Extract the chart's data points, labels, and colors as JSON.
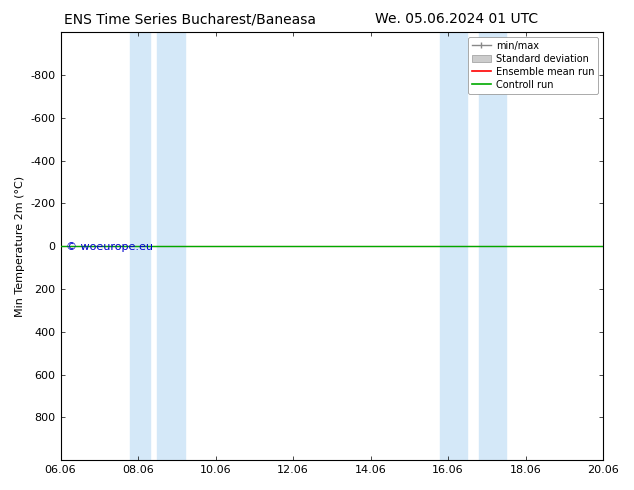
{
  "title_left": "ENS Time Series Bucharest/Baneasa",
  "title_right": "We. 05.06.2024 01 UTC",
  "ylabel": "Min Temperature 2m (°C)",
  "ylim_top": -1000,
  "ylim_bottom": 1000,
  "yticks": [
    -800,
    -600,
    -400,
    -200,
    0,
    200,
    400,
    600,
    800
  ],
  "xtick_labels": [
    "06.06",
    "08.06",
    "10.06",
    "12.06",
    "14.06",
    "16.06",
    "18.06",
    "20.06"
  ],
  "xtick_positions": [
    0,
    2,
    4,
    6,
    8,
    10,
    12,
    14
  ],
  "x_num_days": 14,
  "blue_band_positions": [
    [
      1.8,
      2.3
    ],
    [
      2.5,
      3.2
    ],
    [
      9.8,
      10.5
    ],
    [
      10.8,
      11.5
    ]
  ],
  "green_line_y": 0,
  "red_line_y": 0,
  "watermark": "© woeurope.eu",
  "watermark_color": "#0000cc",
  "background_color": "#ffffff",
  "plot_bg_color": "#ffffff",
  "blue_band_color": "#d4e8f8",
  "green_line_color": "#00aa00",
  "red_line_color": "#ff0000",
  "legend_items": [
    "min/max",
    "Standard deviation",
    "Ensemble mean run",
    "Controll run"
  ],
  "legend_line_color": "#888888",
  "legend_std_color": "#cccccc",
  "legend_red": "#ff0000",
  "legend_green": "#00aa00",
  "title_fontsize": 10,
  "axis_fontsize": 8,
  "tick_fontsize": 8,
  "legend_fontsize": 7
}
